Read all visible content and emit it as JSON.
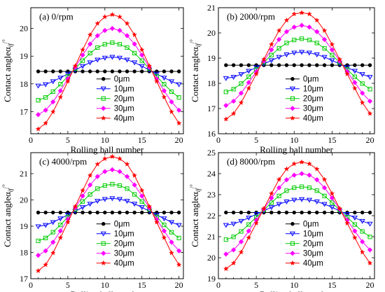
{
  "chart_data": [
    {
      "type": "line",
      "title": "(a) 0/rpm",
      "xlabel": "Rolling ball number",
      "ylabel": "Contact angleα",
      "ylabel_sub": "if",
      "ylabel_sup": "/°",
      "xlim": [
        0,
        20.6
      ],
      "ylim": [
        16.2,
        20.75
      ],
      "xticks": [
        0,
        5,
        10,
        15,
        20
      ],
      "yticks": [
        17,
        18,
        19,
        20
      ],
      "legend": "center",
      "x": [
        1,
        2,
        3,
        4,
        5,
        6,
        7,
        8,
        9,
        10,
        11,
        12,
        13,
        14,
        15,
        16,
        17,
        18,
        19,
        20
      ],
      "series": [
        {
          "name": "0μm",
          "color": "#000000",
          "marker": "circle",
          "values": [
            18.45,
            18.45,
            18.45,
            18.45,
            18.45,
            18.45,
            18.45,
            18.45,
            18.45,
            18.45,
            18.45,
            18.45,
            18.45,
            18.45,
            18.45,
            18.45,
            18.45,
            18.45,
            18.45,
            18.45
          ]
        },
        {
          "name": "10μm",
          "color": "#0000ff",
          "marker": "triangle-down",
          "values": [
            17.93,
            17.98,
            18.09,
            18.22,
            18.36,
            18.5,
            18.64,
            18.77,
            18.87,
            18.94,
            18.97,
            18.94,
            18.87,
            18.77,
            18.64,
            18.5,
            18.36,
            18.22,
            18.09,
            17.98
          ]
        },
        {
          "name": "20μm",
          "color": "#00cc00",
          "marker": "square",
          "values": [
            17.41,
            17.51,
            17.72,
            17.99,
            18.27,
            18.55,
            18.84,
            19.11,
            19.31,
            19.43,
            19.49,
            19.43,
            19.31,
            19.11,
            18.84,
            18.55,
            18.27,
            17.99,
            17.72,
            17.51
          ]
        },
        {
          "name": "30μm",
          "color": "#ff00ff",
          "marker": "diamond",
          "values": [
            16.89,
            17.05,
            17.35,
            17.75,
            18.18,
            18.6,
            19.04,
            19.44,
            19.74,
            19.93,
            20.0,
            19.93,
            19.74,
            19.44,
            19.04,
            18.6,
            18.18,
            17.75,
            17.35,
            17.05
          ]
        },
        {
          "name": "40μm",
          "color": "#ff0000",
          "marker": "star",
          "values": [
            16.37,
            16.58,
            16.99,
            17.52,
            18.09,
            18.65,
            19.23,
            19.77,
            20.18,
            20.42,
            20.5,
            20.42,
            20.18,
            19.77,
            19.23,
            18.65,
            18.09,
            17.52,
            16.99,
            16.58
          ]
        }
      ]
    },
    {
      "type": "line",
      "title": "(b) 2000/rpm",
      "xlabel": "Rolling ball number",
      "ylabel": "Contact angleα",
      "ylabel_sub": "if",
      "ylabel_sup": "/°",
      "xlim": [
        0,
        20.6
      ],
      "ylim": [
        16.0,
        21.0
      ],
      "xticks": [
        0,
        5,
        10,
        15,
        20
      ],
      "yticks": [
        16,
        17,
        18,
        19,
        20,
        21
      ],
      "legend": "center",
      "x": [
        1,
        2,
        3,
        4,
        5,
        6,
        7,
        8,
        9,
        10,
        11,
        12,
        13,
        14,
        15,
        16,
        17,
        18,
        19,
        20
      ],
      "series": [
        {
          "name": "0μm",
          "color": "#000000",
          "marker": "circle",
          "values": [
            18.72,
            18.72,
            18.72,
            18.72,
            18.72,
            18.72,
            18.72,
            18.72,
            18.72,
            18.72,
            18.72,
            18.72,
            18.72,
            18.72,
            18.72,
            18.72,
            18.72,
            18.72,
            18.72,
            18.72
          ]
        },
        {
          "name": "10μm",
          "color": "#0000ff",
          "marker": "triangle-down",
          "values": [
            18.2,
            18.25,
            18.36,
            18.49,
            18.63,
            18.77,
            18.91,
            19.04,
            19.14,
            19.21,
            19.24,
            19.21,
            19.14,
            19.04,
            18.91,
            18.77,
            18.63,
            18.49,
            18.36,
            18.25
          ]
        },
        {
          "name": "20μm",
          "color": "#00cc00",
          "marker": "square",
          "values": [
            17.66,
            17.77,
            17.99,
            18.26,
            18.55,
            18.83,
            19.12,
            19.39,
            19.6,
            19.72,
            19.77,
            19.72,
            19.6,
            19.39,
            19.12,
            18.83,
            18.55,
            18.26,
            17.99,
            17.77
          ]
        },
        {
          "name": "30μm",
          "color": "#ff00ff",
          "marker": "diamond",
          "values": [
            17.12,
            17.29,
            17.61,
            18.03,
            18.46,
            18.89,
            19.33,
            19.74,
            20.05,
            20.23,
            20.3,
            20.23,
            20.05,
            19.74,
            19.33,
            18.89,
            18.46,
            18.03,
            17.61,
            17.29
          ]
        },
        {
          "name": "40μm",
          "color": "#ff0000",
          "marker": "star",
          "values": [
            16.58,
            16.8,
            17.23,
            17.8,
            18.37,
            18.95,
            19.54,
            20.09,
            20.5,
            20.75,
            20.8,
            20.75,
            20.5,
            20.09,
            19.54,
            18.95,
            18.37,
            17.8,
            17.23,
            16.8
          ]
        }
      ]
    },
    {
      "type": "line",
      "title": "(c) 4000/rpm",
      "xlabel": "Rolling ball number",
      "ylabel": "Contact angleα",
      "ylabel_sub": "if",
      "ylabel_sup": "/°",
      "xlim": [
        0,
        20.6
      ],
      "ylim": [
        17.0,
        21.8
      ],
      "xticks": [
        0,
        5,
        10,
        15,
        20
      ],
      "yticks": [
        17,
        18,
        19,
        20,
        21
      ],
      "legend": "center",
      "x": [
        1,
        2,
        3,
        4,
        5,
        6,
        7,
        8,
        9,
        10,
        11,
        12,
        13,
        14,
        15,
        16,
        17,
        18,
        19,
        20
      ],
      "series": [
        {
          "name": "0μm",
          "color": "#000000",
          "marker": "circle",
          "values": [
            19.52,
            19.52,
            19.52,
            19.52,
            19.52,
            19.52,
            19.52,
            19.52,
            19.52,
            19.52,
            19.52,
            19.52,
            19.52,
            19.52,
            19.52,
            19.52,
            19.52,
            19.52,
            19.52,
            19.52
          ]
        },
        {
          "name": "10μm",
          "color": "#0000ff",
          "marker": "triangle-down",
          "values": [
            18.99,
            19.04,
            19.15,
            19.29,
            19.43,
            19.57,
            19.72,
            19.85,
            19.96,
            20.03,
            20.06,
            20.03,
            19.96,
            19.85,
            19.72,
            19.57,
            19.43,
            19.29,
            19.15,
            19.04
          ]
        },
        {
          "name": "20μm",
          "color": "#00cc00",
          "marker": "square",
          "values": [
            18.44,
            18.55,
            18.77,
            19.05,
            19.35,
            19.64,
            19.94,
            20.21,
            20.43,
            20.55,
            20.6,
            20.55,
            20.43,
            20.21,
            19.94,
            19.64,
            19.35,
            19.05,
            18.77,
            18.55
          ]
        },
        {
          "name": "30μm",
          "color": "#ff00ff",
          "marker": "diamond",
          "values": [
            17.89,
            18.06,
            18.39,
            18.82,
            19.26,
            19.7,
            20.15,
            20.57,
            20.89,
            21.08,
            21.15,
            21.08,
            20.89,
            20.57,
            20.15,
            19.7,
            19.26,
            18.82,
            18.39,
            18.06
          ]
        },
        {
          "name": "40μm",
          "color": "#ff0000",
          "marker": "star",
          "values": [
            17.3,
            17.53,
            17.98,
            18.56,
            19.15,
            19.75,
            20.36,
            20.93,
            21.36,
            21.57,
            21.65,
            21.57,
            21.36,
            20.93,
            20.36,
            19.75,
            19.15,
            18.56,
            17.98,
            17.53
          ]
        }
      ]
    },
    {
      "type": "line",
      "title": "(d) 8000/rpm",
      "xlabel": "Rolling ball number",
      "ylabel": "Contact angleα",
      "ylabel_sub": "if",
      "ylabel_sup": "/°",
      "xlim": [
        0,
        20.6
      ],
      "ylim": [
        19.0,
        25.0
      ],
      "xticks": [
        0,
        5,
        10,
        15,
        20
      ],
      "yticks": [
        19,
        20,
        21,
        22,
        23,
        24,
        25
      ],
      "legend": "center",
      "x": [
        1,
        2,
        3,
        4,
        5,
        6,
        7,
        8,
        9,
        10,
        11,
        12,
        13,
        14,
        15,
        16,
        17,
        18,
        19,
        20
      ],
      "series": [
        {
          "name": "0μm",
          "color": "#000000",
          "marker": "circle",
          "values": [
            22.15,
            22.15,
            22.15,
            22.15,
            22.15,
            22.15,
            22.15,
            22.15,
            22.15,
            22.15,
            22.15,
            22.15,
            22.15,
            22.15,
            22.15,
            22.15,
            22.15,
            22.15,
            22.15,
            22.15
          ]
        },
        {
          "name": "10μm",
          "color": "#0000ff",
          "marker": "triangle-down",
          "values": [
            21.55,
            21.61,
            21.74,
            21.9,
            22.07,
            22.23,
            22.4,
            22.55,
            22.67,
            22.75,
            22.78,
            22.75,
            22.67,
            22.55,
            22.4,
            22.23,
            22.07,
            21.9,
            21.74,
            21.61
          ]
        },
        {
          "name": "20μm",
          "color": "#00cc00",
          "marker": "square",
          "values": [
            20.86,
            20.99,
            21.25,
            21.58,
            21.93,
            22.27,
            22.62,
            22.94,
            23.19,
            23.33,
            23.38,
            23.33,
            23.19,
            22.94,
            22.62,
            22.27,
            21.93,
            21.58,
            21.25,
            20.99
          ]
        },
        {
          "name": "30μm",
          "color": "#ff00ff",
          "marker": "diamond",
          "values": [
            20.17,
            20.37,
            20.76,
            21.27,
            21.79,
            22.31,
            22.84,
            23.33,
            23.71,
            23.93,
            24.0,
            23.93,
            23.71,
            23.33,
            22.84,
            22.31,
            21.79,
            21.27,
            20.76,
            20.37
          ]
        },
        {
          "name": "40μm",
          "color": "#ff0000",
          "marker": "star",
          "values": [
            19.47,
            19.74,
            20.26,
            20.95,
            21.64,
            22.34,
            23.05,
            23.72,
            24.22,
            24.47,
            24.55,
            24.47,
            24.22,
            23.72,
            23.05,
            22.34,
            21.64,
            20.95,
            20.26,
            19.74
          ]
        }
      ]
    }
  ]
}
